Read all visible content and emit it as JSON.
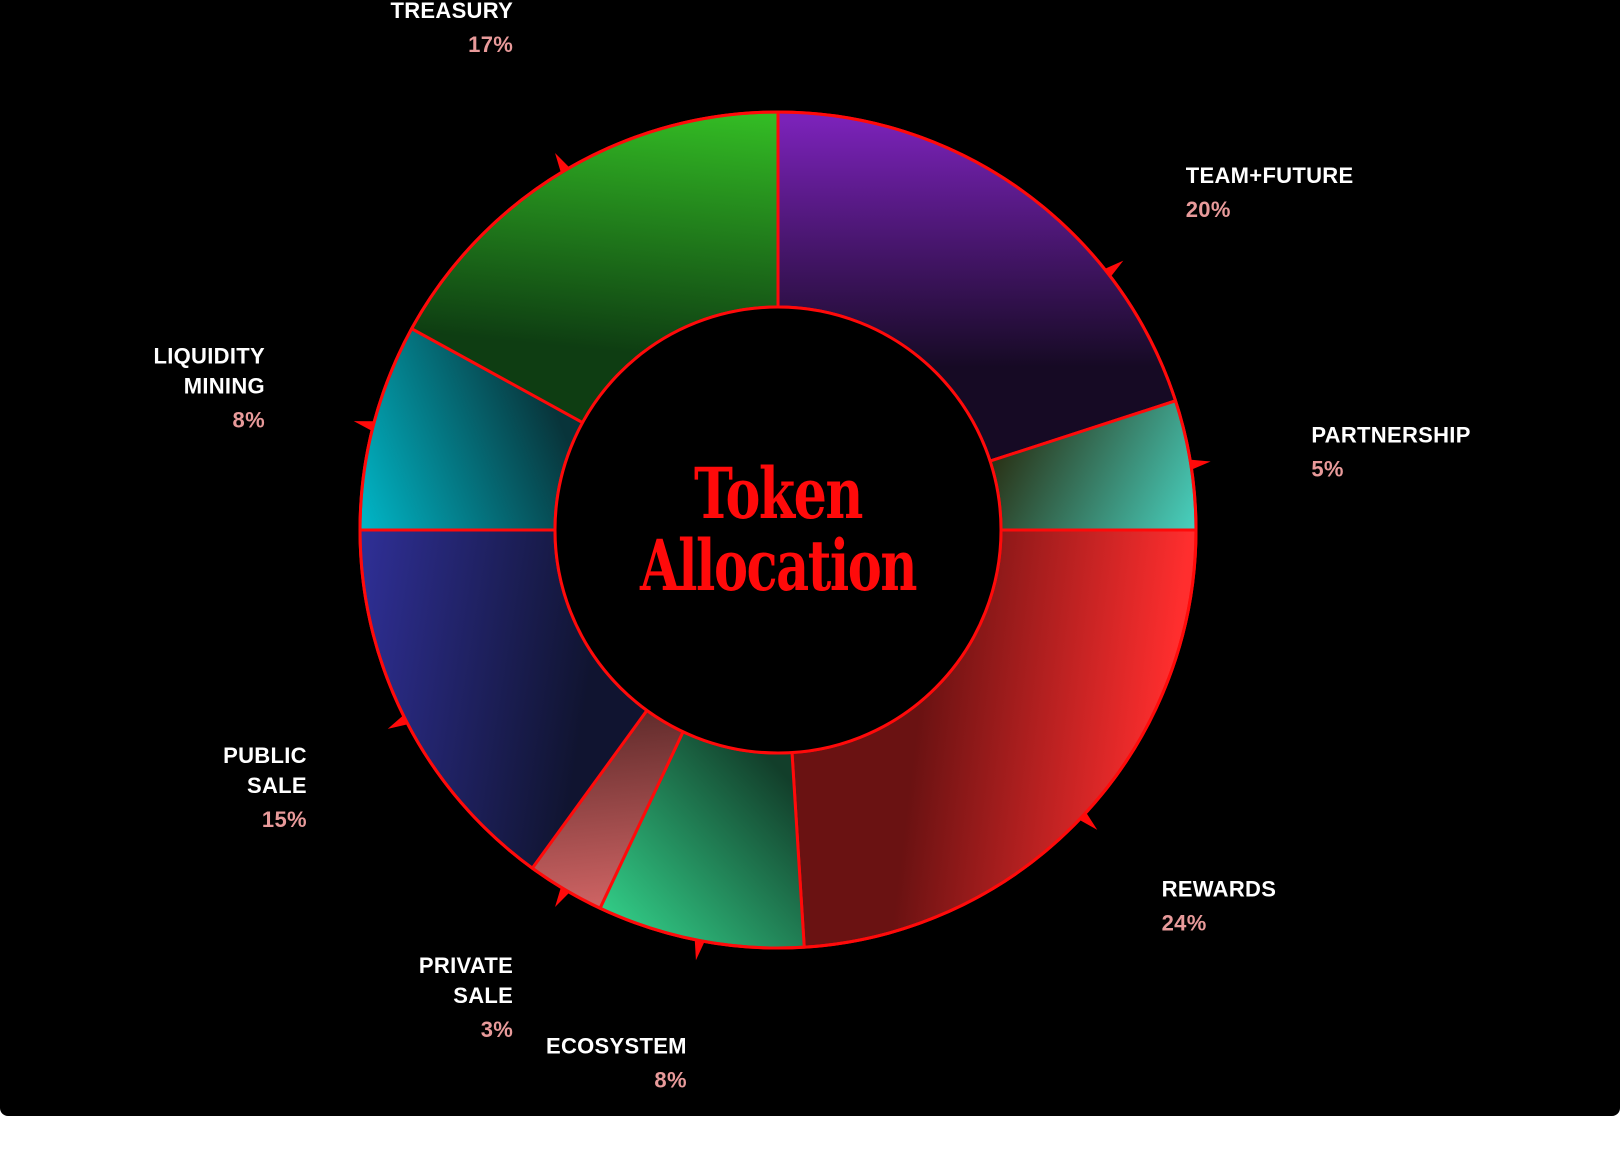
{
  "chart_data": {
    "type": "pie",
    "variant": "donut",
    "title_lines": [
      "Token",
      "Allocation"
    ],
    "slices": [
      {
        "label_lines": [
          "TEAM+FUTURE"
        ],
        "value": 20,
        "value_label": "20%",
        "color_light": "#7a22b8",
        "color_dark": "#160a24",
        "text_anchor": "start"
      },
      {
        "label_lines": [
          "PARTNERSHIP"
        ],
        "value": 5,
        "value_label": "5%",
        "color_light": "#4eeede",
        "color_dark": "#2a3418",
        "text_anchor": "start"
      },
      {
        "label_lines": [
          "REWARDS"
        ],
        "value": 24,
        "value_label": "24%",
        "color_light": "#ff2e2e",
        "color_dark": "#6a1212",
        "text_anchor": "start"
      },
      {
        "label_lines": [
          "ECOSYSTEM"
        ],
        "value": 8,
        "value_label": "8%",
        "color_light": "#35d98f",
        "color_dark": "#123e2a",
        "text_anchor": "end"
      },
      {
        "label_lines": [
          "PRIVATE",
          "SALE"
        ],
        "value": 3,
        "value_label": "3%",
        "color_light": "#ec7373",
        "color_dark": "#5e2a2a",
        "text_anchor": "end"
      },
      {
        "label_lines": [
          "PUBLIC",
          "SALE"
        ],
        "value": 15,
        "value_label": "15%",
        "color_light": "#2f2f96",
        "color_dark": "#101430",
        "text_anchor": "end"
      },
      {
        "label_lines": [
          "LIQUIDITY",
          "MINING"
        ],
        "value": 8,
        "value_label": "8%",
        "color_light": "#00c4d6",
        "color_dark": "#08343a",
        "text_anchor": "end"
      },
      {
        "label_lines": [
          "TREASURY"
        ],
        "value": 17,
        "value_label": "17%",
        "color_light": "#33bb24",
        "color_dark": "#0e3d12",
        "text_anchor": "end"
      }
    ],
    "stroke_color": "#ff0a0a",
    "background": "#000000"
  }
}
